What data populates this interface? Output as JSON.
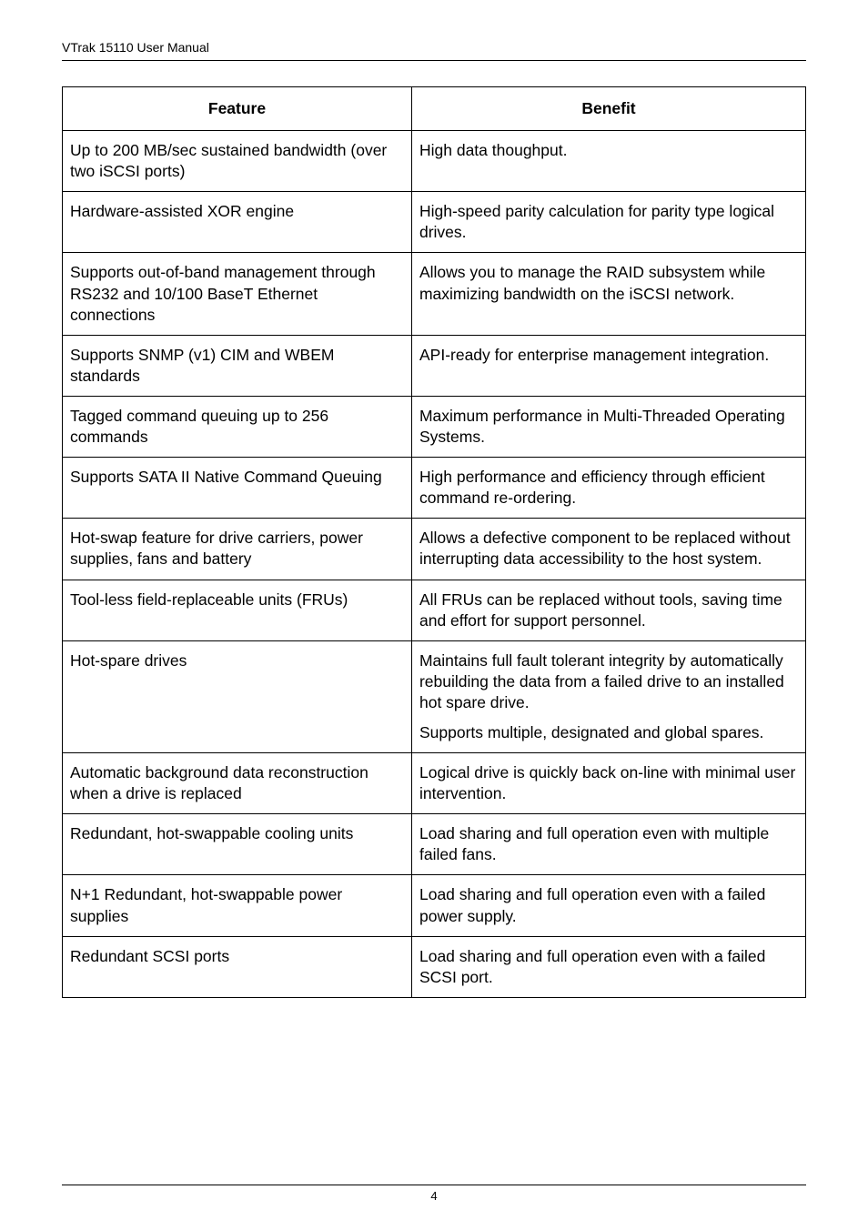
{
  "header": {
    "title": "VTrak 15110 User Manual"
  },
  "table": {
    "headers": {
      "feature": "Feature",
      "benefit": "Benefit"
    },
    "rows": [
      {
        "feature": "Up to 200 MB/sec sustained bandwidth (over two iSCSI ports)",
        "benefit": "High data thoughput."
      },
      {
        "feature": "Hardware-assisted XOR engine",
        "benefit": "High-speed parity calculation for parity type logical drives."
      },
      {
        "feature": "Supports out-of-band management through RS232 and 10/100 BaseT Ethernet connections",
        "benefit": "Allows you to manage the RAID subsystem while maximizing bandwidth on the iSCSI network."
      },
      {
        "feature": "Supports SNMP (v1) CIM and WBEM standards",
        "benefit": "API-ready for enterprise management integration."
      },
      {
        "feature": "Tagged command queuing up to 256 commands",
        "benefit": "Maximum performance in Multi-Threaded Operating Systems."
      },
      {
        "feature": "Supports SATA II Native Command Queuing",
        "benefit": "High performance and efficiency through efficient command re-ordering."
      },
      {
        "feature": "Hot-swap feature for drive carriers, power supplies, fans and battery",
        "benefit": "Allows a defective component to be replaced without interrupting data accessibility to the host system."
      },
      {
        "feature": "Tool-less field-replaceable units (FRUs)",
        "benefit": "All FRUs can be replaced without tools, saving time and effort for support personnel."
      },
      {
        "feature": "Hot-spare drives",
        "benefit_p1": "Maintains full fault tolerant integrity by automatically rebuilding the data from a failed drive to an installed hot spare drive.",
        "benefit_p2": "Supports multiple, designated and global spares."
      },
      {
        "feature": "Automatic background data reconstruction when a drive is replaced",
        "benefit": "Logical drive is quickly back on-line with minimal user intervention."
      },
      {
        "feature": "Redundant, hot-swappable cooling units",
        "benefit": "Load sharing and full operation even with multiple failed fans."
      },
      {
        "feature": "N+1 Redundant, hot-swappable power supplies",
        "benefit": "Load sharing and full operation even with a failed power supply."
      },
      {
        "feature": "Redundant SCSI ports",
        "benefit": "Load sharing and full operation even with a failed SCSI port."
      }
    ]
  },
  "footer": {
    "page_number": "4"
  }
}
